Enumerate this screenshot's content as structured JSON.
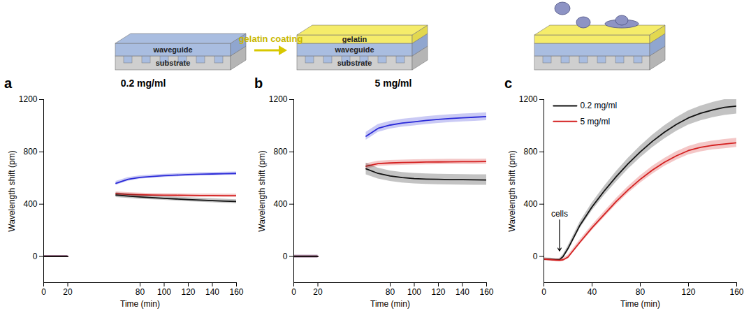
{
  "schematic": {
    "arrow_label": "gelatin coating",
    "steps": [
      {
        "labels": [
          "substrate",
          "waveguide"
        ]
      },
      {
        "labels": [
          "substrate",
          "waveguide",
          "gelatin"
        ]
      },
      {
        "labels": []
      }
    ]
  },
  "chart_data": [
    {
      "type": "line",
      "panel_label": "a",
      "title": "0.2 mg/ml",
      "xlabel": "Time (min)",
      "ylabel": "Wavelength shift (pm)",
      "xlim": [
        0,
        160
      ],
      "xticks": [
        0,
        20,
        80,
        100,
        120,
        140,
        160
      ],
      "ylim": [
        -200,
        1200
      ],
      "yticks": [
        0,
        400,
        800,
        1200
      ],
      "x": [
        0,
        10,
        20,
        40,
        60,
        70,
        80,
        90,
        100,
        110,
        120,
        130,
        140,
        150,
        160
      ],
      "series": [
        {
          "color": "#2a2ad8",
          "values": [
            0,
            0,
            0,
            null,
            560,
            590,
            605,
            612,
            618,
            622,
            626,
            629,
            631,
            633,
            635
          ],
          "error": [
            8,
            8,
            8,
            null,
            15,
            14,
            13,
            12,
            12,
            12,
            12,
            12,
            12,
            12,
            12
          ]
        },
        {
          "color": "#d42020",
          "values": [
            0,
            0,
            0,
            null,
            480,
            475,
            472,
            470,
            469,
            468,
            467,
            466,
            466,
            465,
            465
          ],
          "error": [
            8,
            8,
            8,
            null,
            15,
            14,
            13,
            12,
            12,
            12,
            12,
            12,
            12,
            12,
            12
          ]
        },
        {
          "color": "#111111",
          "values": [
            0,
            0,
            0,
            null,
            470,
            462,
            455,
            450,
            445,
            440,
            435,
            431,
            427,
            423,
            420
          ],
          "error": [
            8,
            8,
            8,
            null,
            18,
            17,
            16,
            15,
            15,
            15,
            15,
            15,
            15,
            15,
            15
          ]
        }
      ]
    },
    {
      "type": "line",
      "panel_label": "b",
      "title": "5 mg/ml",
      "xlabel": "Time (min)",
      "ylabel": "Wavelength shift (pm)",
      "xlim": [
        0,
        160
      ],
      "xticks": [
        0,
        20,
        80,
        100,
        120,
        140,
        160
      ],
      "ylim": [
        -200,
        1200
      ],
      "yticks": [
        0,
        400,
        800,
        1200
      ],
      "x": [
        0,
        10,
        20,
        40,
        60,
        70,
        80,
        90,
        100,
        110,
        120,
        130,
        140,
        150,
        160
      ],
      "series": [
        {
          "color": "#2a2ad8",
          "values": [
            0,
            0,
            0,
            null,
            920,
            980,
            1005,
            1020,
            1030,
            1040,
            1048,
            1055,
            1060,
            1065,
            1070
          ],
          "error": [
            10,
            10,
            10,
            null,
            30,
            30,
            30,
            30,
            30,
            30,
            30,
            30,
            30,
            30,
            30
          ]
        },
        {
          "color": "#d42020",
          "values": [
            0,
            0,
            0,
            null,
            690,
            710,
            715,
            718,
            720,
            722,
            723,
            724,
            725,
            725,
            726
          ],
          "error": [
            10,
            10,
            10,
            null,
            20,
            20,
            20,
            20,
            20,
            20,
            20,
            20,
            20,
            20,
            20
          ]
        },
        {
          "color": "#111111",
          "values": [
            0,
            0,
            0,
            null,
            670,
            635,
            615,
            603,
            596,
            592,
            590,
            588,
            587,
            586,
            585
          ],
          "error": [
            10,
            10,
            10,
            null,
            45,
            42,
            40,
            40,
            40,
            40,
            40,
            40,
            40,
            40,
            40
          ]
        }
      ]
    },
    {
      "type": "line",
      "panel_label": "c",
      "xlabel": "Time (min)",
      "ylabel": "Wavelength shift (pm)",
      "xlim": [
        0,
        160
      ],
      "xticks": [
        0,
        40,
        80,
        120,
        160
      ],
      "ylim": [
        -200,
        1200
      ],
      "yticks": [
        0,
        400,
        800,
        1200
      ],
      "legend": "top-left",
      "annotations": [
        {
          "text": "cells",
          "x": 13,
          "y": 0
        }
      ],
      "x": [
        0,
        5,
        10,
        13,
        16,
        20,
        30,
        40,
        50,
        60,
        70,
        80,
        90,
        100,
        110,
        120,
        130,
        140,
        150,
        160
      ],
      "series": [
        {
          "name": "0.2 mg/ml",
          "color": "#111111",
          "values": [
            -20,
            -22,
            -25,
            -25,
            0,
            60,
            240,
            380,
            500,
            610,
            710,
            800,
            880,
            950,
            1010,
            1060,
            1095,
            1120,
            1140,
            1150
          ],
          "error": [
            10,
            10,
            10,
            10,
            15,
            20,
            25,
            30,
            35,
            40,
            42,
            45,
            48,
            50,
            52,
            54,
            56,
            58,
            60,
            60
          ]
        },
        {
          "name": "5 mg/ml",
          "color": "#d42020",
          "values": [
            -20,
            -24,
            -28,
            -30,
            -25,
            -5,
            110,
            220,
            320,
            420,
            510,
            590,
            660,
            720,
            770,
            810,
            835,
            850,
            860,
            870
          ],
          "error": [
            10,
            10,
            10,
            10,
            12,
            15,
            18,
            20,
            22,
            24,
            26,
            28,
            30,
            30,
            32,
            32,
            34,
            34,
            35,
            35
          ]
        }
      ]
    }
  ]
}
